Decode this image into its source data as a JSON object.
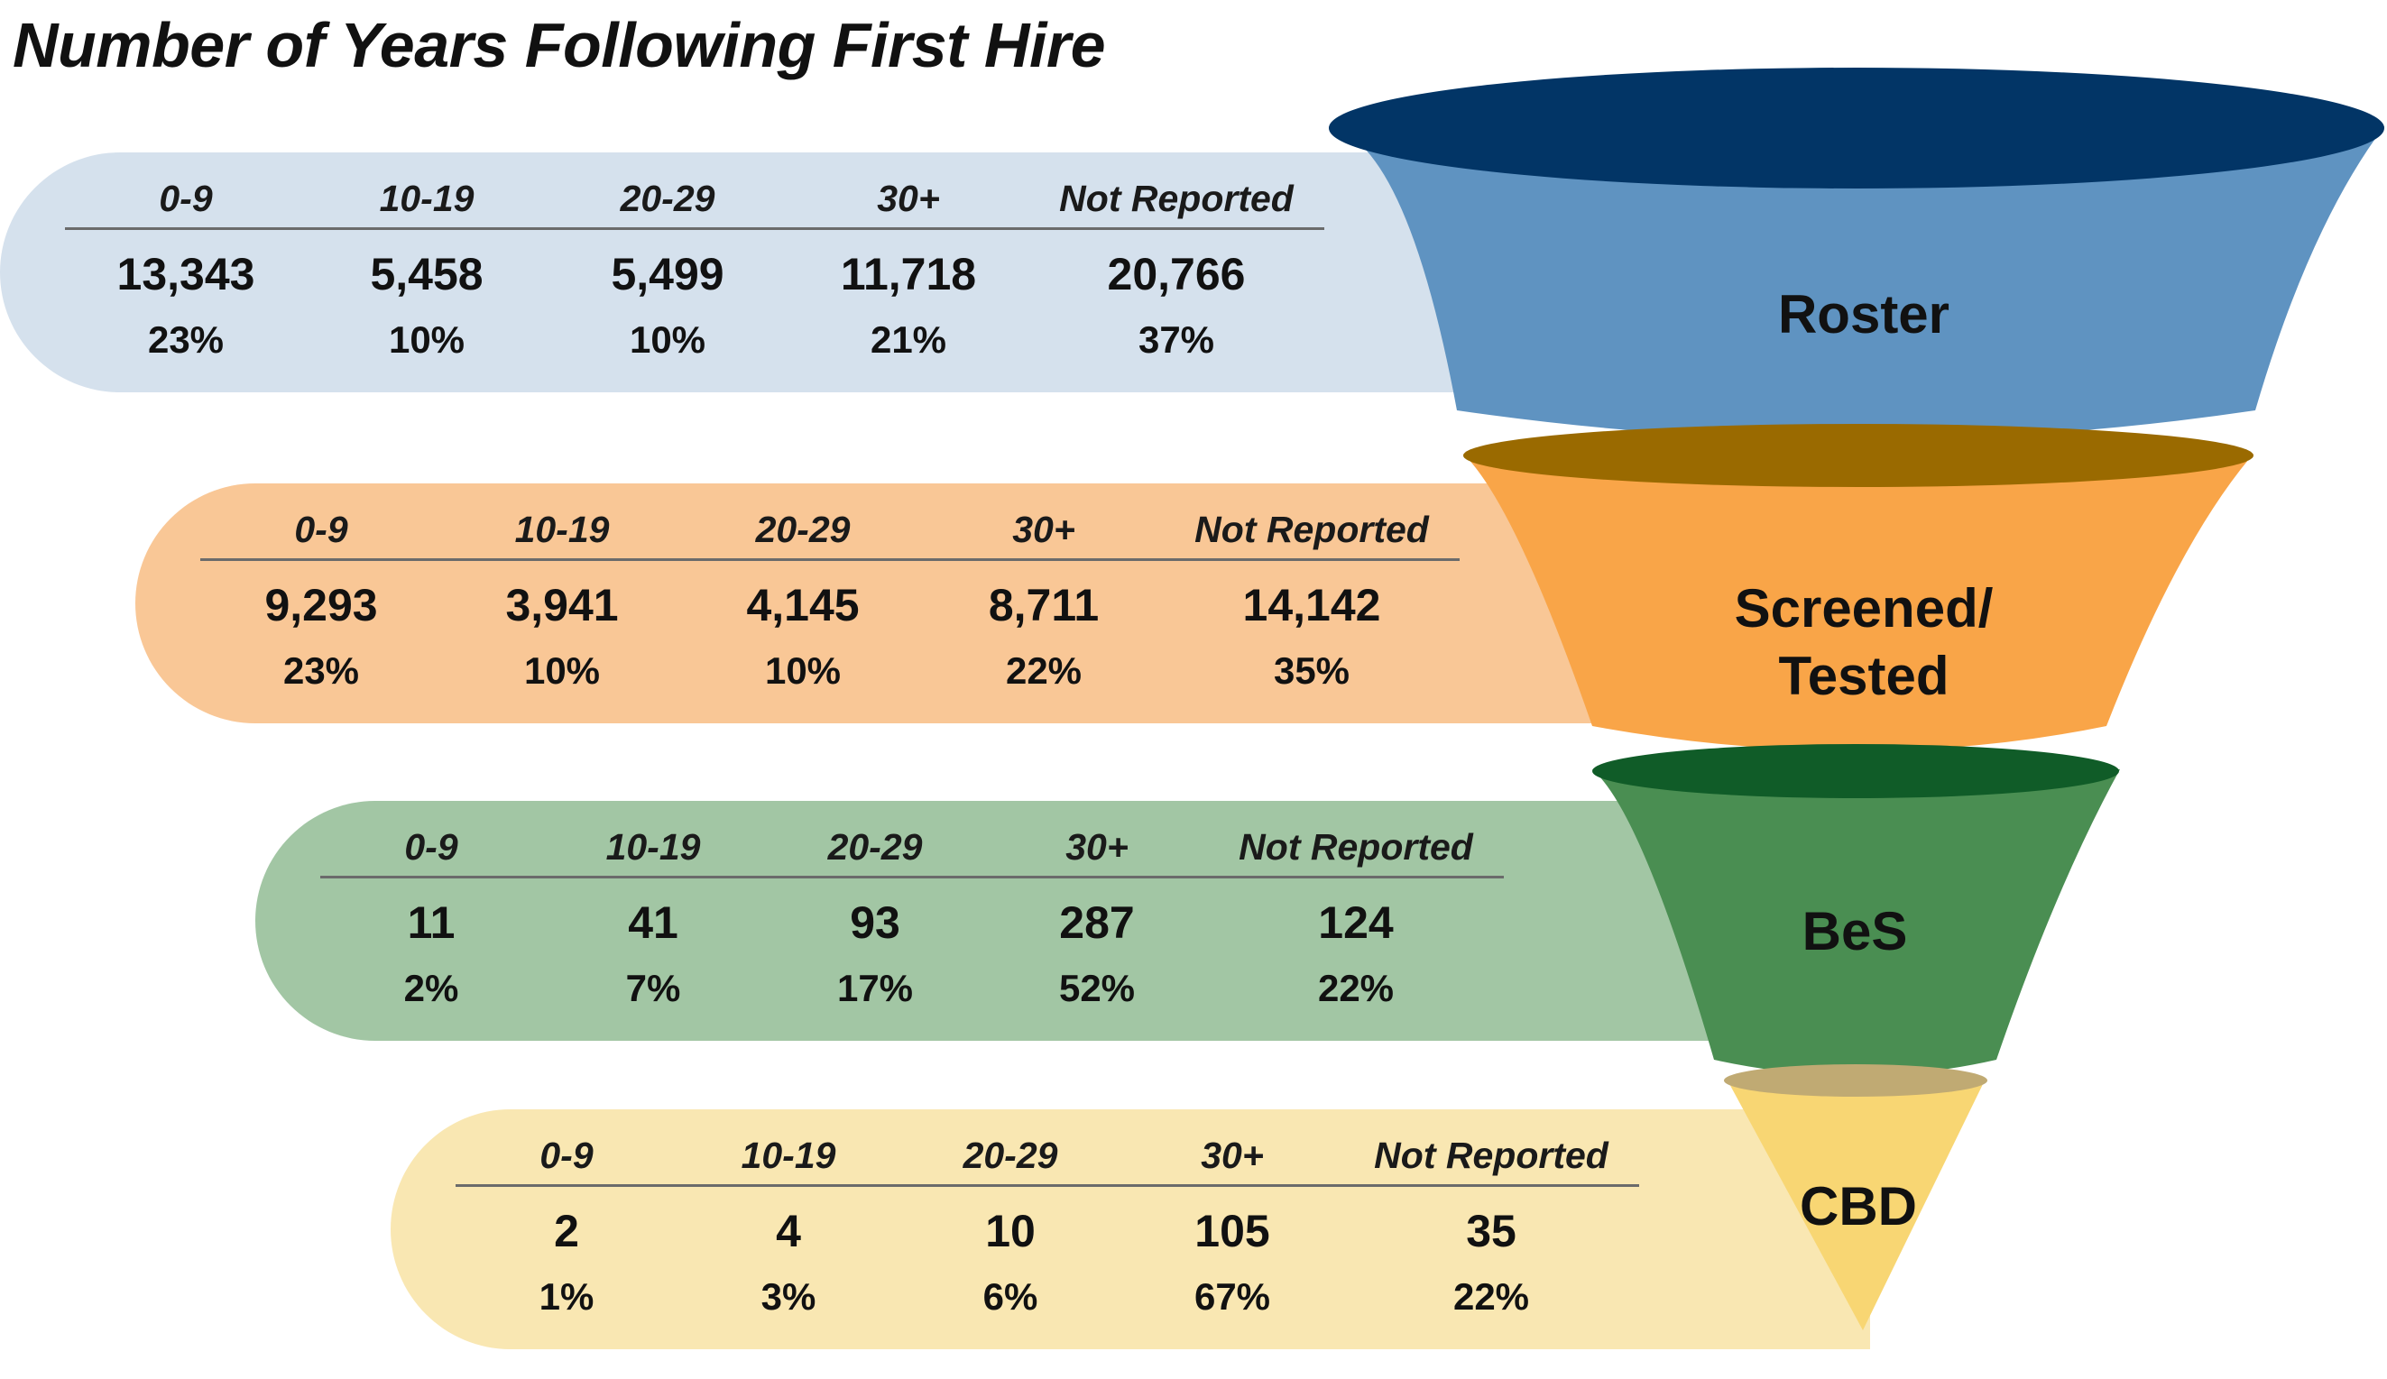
{
  "title": "Number of Years Following First Hire",
  "columns": [
    "0-9",
    "10-19",
    "20-29",
    "30+",
    "Not Reported"
  ],
  "stages": [
    {
      "name": "Roster",
      "counts": [
        "13,343",
        "5,458",
        "5,499",
        "11,718",
        "20,766"
      ],
      "percents": [
        "23%",
        "10%",
        "10%",
        "21%",
        "37%"
      ]
    },
    {
      "name": "Screened/ Tested",
      "name_lines": [
        "Screened/",
        "Tested"
      ],
      "counts": [
        "9,293",
        "3,941",
        "4,145",
        "8,711",
        "14,142"
      ],
      "percents": [
        "23%",
        "10%",
        "10%",
        "22%",
        "35%"
      ]
    },
    {
      "name": "BeS",
      "counts": [
        "11",
        "41",
        "93",
        "287",
        "124"
      ],
      "percents": [
        "2%",
        "7%",
        "17%",
        "52%",
        "22%"
      ]
    },
    {
      "name": "CBD",
      "counts": [
        "2",
        "4",
        "10",
        "105",
        "35"
      ],
      "percents": [
        "1%",
        "3%",
        "6%",
        "67%",
        "22%"
      ]
    }
  ],
  "colors": {
    "roster_band": "#d5e1ed",
    "roster_body": "#5f93c1",
    "roster_rim": "#023566",
    "screened_band": "#f9c796",
    "screened_body": "#f9a548",
    "screened_rim": "#9a6a00",
    "bes_band": "#a2c6a4",
    "bes_body": "#4a8e52",
    "bes_rim": "#105c28",
    "cbd_band": "#f9e7b2",
    "cbd_body": "#f8d673",
    "cbd_rim": "#c0aa73"
  }
}
